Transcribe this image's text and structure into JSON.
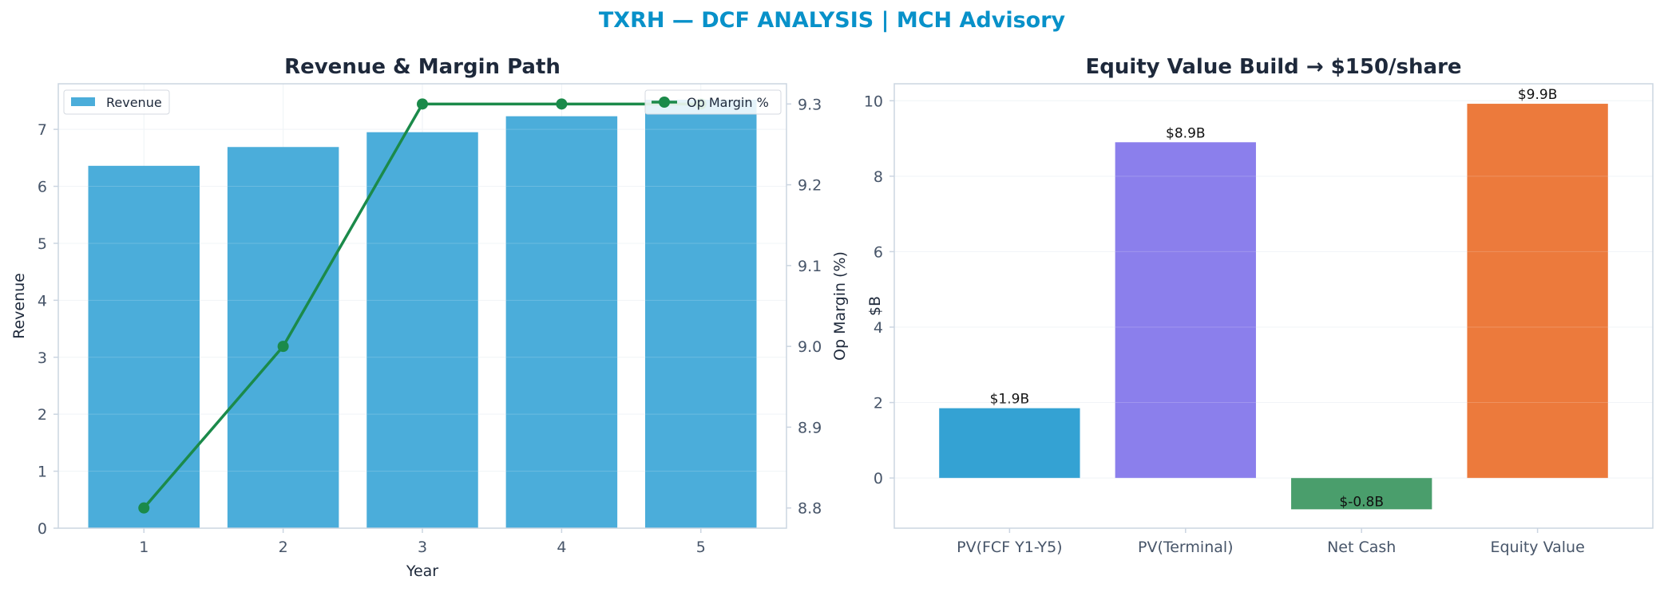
{
  "suptitle": "TXRH — DCF ANALYSIS | MCH Advisory",
  "colors": {
    "suptitle": "#0891c9",
    "title": "#1e293b",
    "tick": "#475569",
    "spine": "#cbd5e1",
    "grid": "#eef2f6",
    "revenue_bar": "#4badda",
    "margin_line": "#1b8a4a"
  },
  "chart_data": [
    {
      "type": "bar",
      "title": "Revenue & Margin Path",
      "xlabel": "Year",
      "ylabel": "Revenue",
      "y2label": "Op Margin (%)",
      "categories": [
        "1",
        "2",
        "3",
        "4",
        "5"
      ],
      "ylim": [
        0,
        7.8
      ],
      "yticks": [
        "0",
        "1",
        "2",
        "3",
        "4",
        "5",
        "6",
        "7"
      ],
      "y2lim": [
        8.775,
        9.325
      ],
      "y2ticks": [
        "8.8",
        "8.9",
        "9.0",
        "9.1",
        "9.2",
        "9.3"
      ],
      "series": [
        {
          "name": "Revenue",
          "type": "bar",
          "axis": "left",
          "values": [
            6.36,
            6.69,
            6.95,
            7.23,
            7.52
          ]
        },
        {
          "name": "Op Margin %",
          "type": "line",
          "axis": "right",
          "values": [
            8.8,
            9.0,
            9.3,
            9.3,
            9.3
          ]
        }
      ],
      "legend": [
        "top-left",
        "top-right"
      ],
      "grid": true
    },
    {
      "type": "bar",
      "title": "Equity Value Build → $150/share",
      "xlabel": "",
      "ylabel": "$B",
      "categories": [
        "PV(FCF Y1-Y5)",
        "PV(Terminal)",
        "Net Cash",
        "Equity Value"
      ],
      "values": [
        1.85,
        8.9,
        -0.83,
        9.92
      ],
      "data_labels": [
        "$1.9B",
        "$8.9B",
        "$-0.8B",
        "$9.9B"
      ],
      "bar_colors": [
        "#34a2d3",
        "#8b7fec",
        "#4a9e6c",
        "#ec7a3c"
      ],
      "ylim": [
        -1.33,
        10.45
      ],
      "yticks": [
        "0",
        "2",
        "4",
        "6",
        "8",
        "10"
      ],
      "grid": true
    }
  ]
}
